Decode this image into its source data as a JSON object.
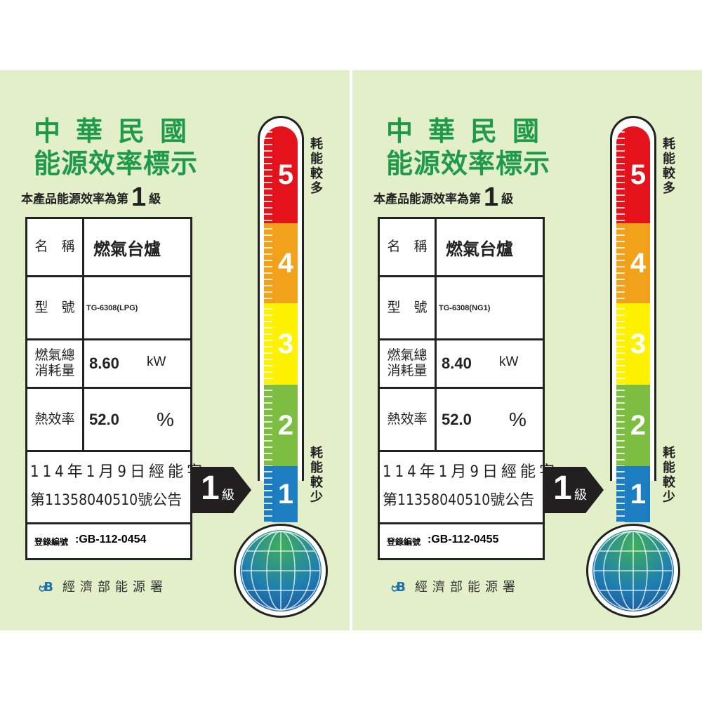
{
  "labels": [
    {
      "title_line1": "中華民國",
      "title_line2": "能源效率標示",
      "grade_prefix": "本產品能源效率為第",
      "grade": "1",
      "grade_suffix": "級",
      "name_label": "名　稱",
      "name_value": "燃氣台爐",
      "model_label": "型　號",
      "model_value": "TG-6308(LPG)",
      "consumption_label": "燃氣總消耗量",
      "consumption_value": "8.60",
      "consumption_unit": "kW",
      "efficiency_label": "熱效率",
      "efficiency_value": "52.0",
      "efficiency_unit": "%",
      "announcement_line1": "114年1月9日經能字",
      "announcement_line2": "第11358040510號公告",
      "registration_label": "登錄編號",
      "registration_value": "GB-112-0454",
      "arrow_grade": "1",
      "arrow_suffix": "級",
      "scale": [
        "5",
        "4",
        "3",
        "2",
        "1"
      ],
      "more_energy": "耗能較多",
      "less_energy": "耗能較少",
      "agency_logo": "8B",
      "agency": "經濟部能源署"
    },
    {
      "title_line1": "中華民國",
      "title_line2": "能源效率標示",
      "grade_prefix": "本產品能源效率為第",
      "grade": "1",
      "grade_suffix": "級",
      "name_label": "名　稱",
      "name_value": "燃氣台爐",
      "model_label": "型　號",
      "model_value": "TG-6308(NG1)",
      "consumption_label": "燃氣總消耗量",
      "consumption_value": "8.40",
      "consumption_unit": "kW",
      "efficiency_label": "熱效率",
      "efficiency_value": "52.0",
      "efficiency_unit": "%",
      "announcement_line1": "114年1月9日經能字",
      "announcement_line2": "第11358040510號公告",
      "registration_label": "登錄編號",
      "registration_value": "GB-112-0455",
      "arrow_grade": "1",
      "arrow_suffix": "級",
      "scale": [
        "5",
        "4",
        "3",
        "2",
        "1"
      ],
      "more_energy": "耗能較多",
      "less_energy": "耗能較少",
      "agency_logo": "8B",
      "agency": "經濟部能源署"
    }
  ],
  "scale_colors": [
    "#e3121b",
    "#f1a11a",
    "#fff200",
    "#7dbd41",
    "#1d7dc1"
  ],
  "title_color": "#1e9a4a"
}
